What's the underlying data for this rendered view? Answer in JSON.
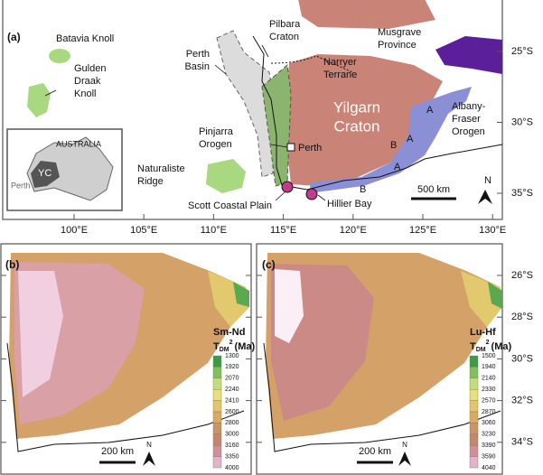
{
  "panel_a": {
    "label": "(a)",
    "batavia_knoll": "Batavia Knoll",
    "gulden_draak_knoll": [
      "Gulden",
      "Draak",
      "Knoll"
    ],
    "perth_basin": [
      "Perth",
      "Basin"
    ],
    "pilbara_craton": [
      "Pilbara",
      "Craton"
    ],
    "narryer_terrane": [
      "Narryer",
      "Terrane"
    ],
    "musgrave_province": [
      "Musgrave",
      "Province"
    ],
    "yilgarn_craton": [
      "Yilgarn",
      "Craton"
    ],
    "albany_fraser_orogen": [
      "Albany-",
      "Fraser",
      "Orogen"
    ],
    "pinjarra_orogen": [
      "Pinjarra",
      "Orogen"
    ],
    "perth": "Perth",
    "naturaliste_ridge": [
      "Naturaliste",
      "Ridge"
    ],
    "scott_coastal_plain": "Scott Coastal Plain",
    "hillier_bay": "Hillier Bay",
    "zone_labels": [
      "A",
      "A",
      "A",
      "B",
      "B"
    ],
    "scale_bar": "500 km",
    "north": "N",
    "inset": {
      "country": "AUSTRALIA",
      "craton": "YC",
      "city": "Perth"
    },
    "latitudes": [
      "25°S",
      "30°S",
      "35°S"
    ],
    "longitudes": [
      "100°E",
      "105°E",
      "110°E",
      "115°E",
      "120°E",
      "125°E",
      "130°E"
    ]
  },
  "panel_b": {
    "label": "(b)",
    "legend": {
      "title": "Sm-Nd",
      "symbol": "T",
      "subscript": "DM",
      "superscript": "2",
      "unit": "(Ma)",
      "values": [
        1300,
        1920,
        2070,
        2240,
        2410,
        2600,
        2800,
        3000,
        3160,
        3350,
        4000
      ]
    },
    "scale_bar": "200 km",
    "north": "N"
  },
  "panel_c": {
    "label": "(c)",
    "legend": {
      "title": "Lu-Hf",
      "symbol": "T",
      "subscript": "DM",
      "superscript": "2",
      "unit": "(Ma)",
      "values": [
        1500,
        1940,
        2140,
        2330,
        2570,
        2870,
        3060,
        3230,
        3390,
        3590,
        4040
      ]
    },
    "scale_bar": "200 km",
    "north": "N"
  },
  "latitudes_lower": [
    "26°S",
    "28°S",
    "30°S",
    "32°S",
    "34°S"
  ]
}
